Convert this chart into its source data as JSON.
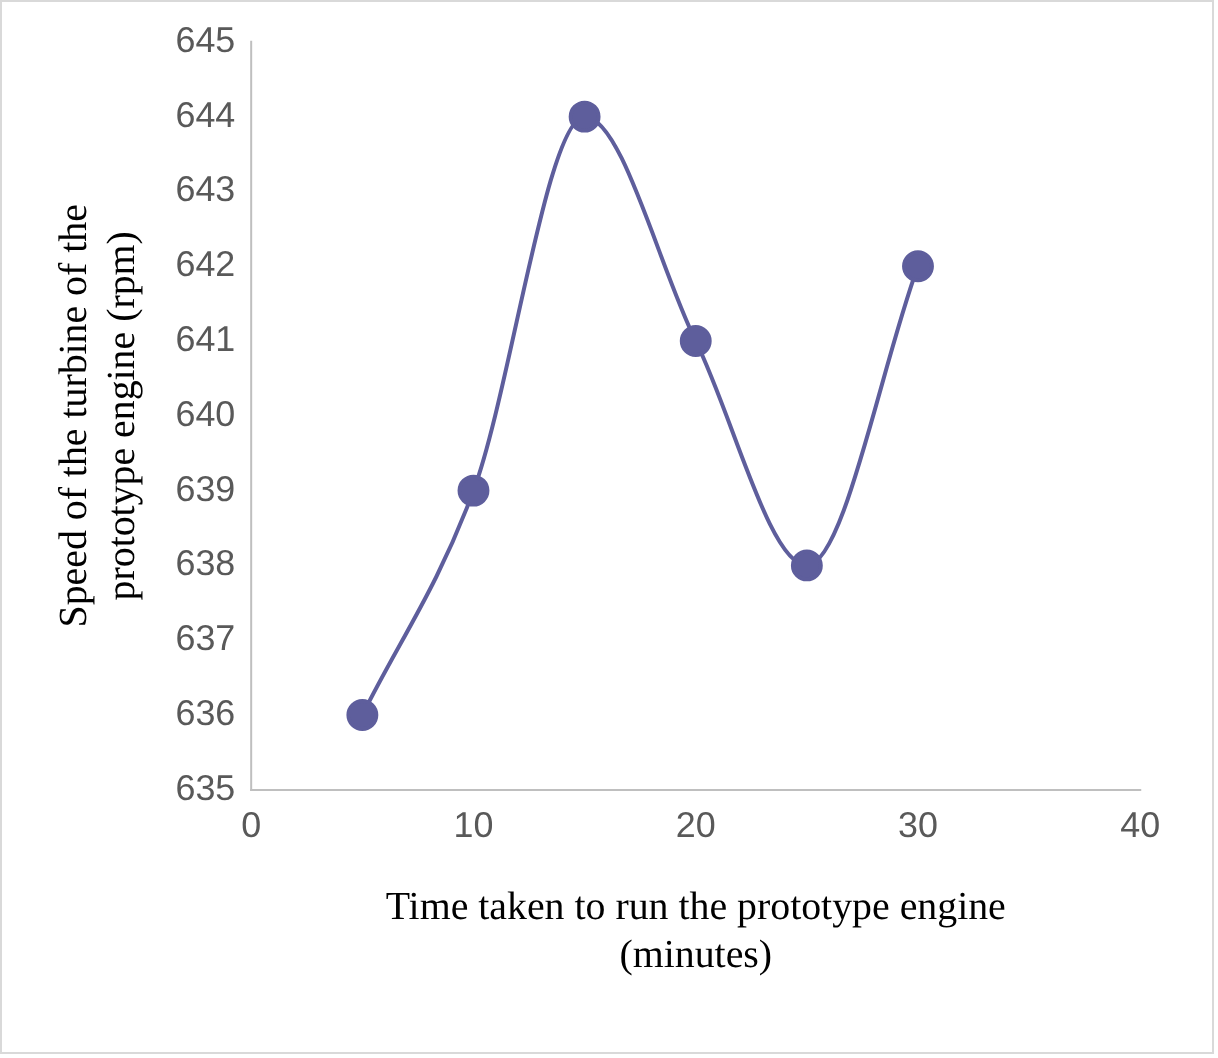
{
  "chart_data": {
    "type": "line",
    "xlabel": "Time taken to run the prototype engine (minutes)",
    "ylabel": "Speed of the turbine of the prototype engine (rpm)",
    "x": [
      5,
      10,
      15,
      20,
      25,
      30
    ],
    "series": [
      {
        "color": "#5e5e9c",
        "values": [
          636,
          639,
          644,
          641,
          638,
          642
        ]
      }
    ],
    "xlim": [
      0,
      40
    ],
    "xticks": [
      0,
      10,
      20,
      30,
      40
    ],
    "ylim": [
      635,
      645
    ],
    "yticks": [
      635,
      636,
      637,
      638,
      639,
      640,
      641,
      642,
      643,
      644,
      645
    ],
    "grid": false,
    "legend": false,
    "marker": "circle",
    "line_style": "solid"
  }
}
